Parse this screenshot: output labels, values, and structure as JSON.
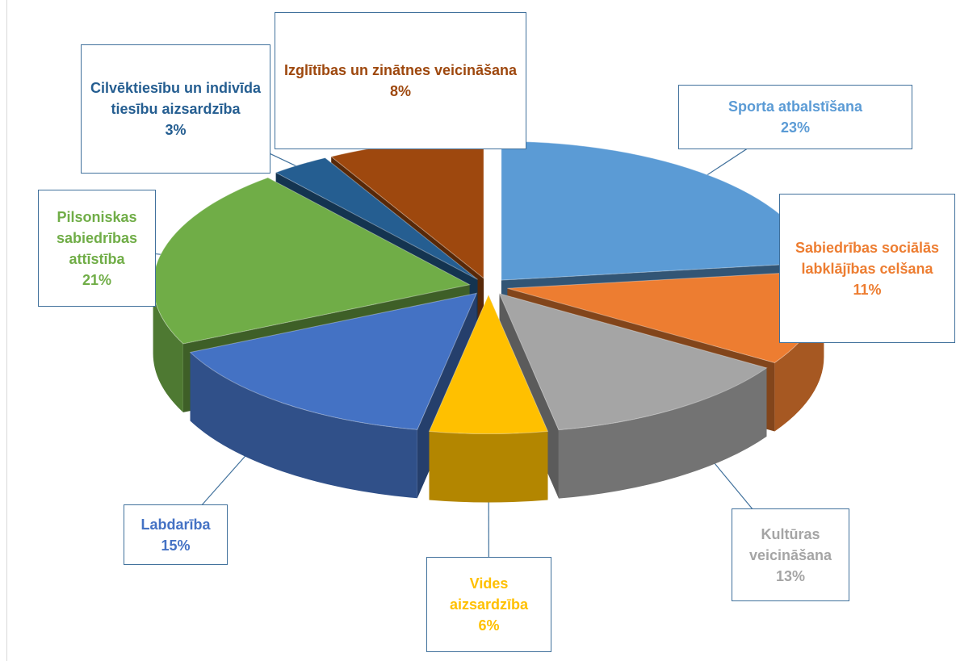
{
  "chart_data": {
    "type": "pie",
    "categories": [
      "Sporta atbalstīšana",
      "Sabiedrības sociālās labklājības celšana",
      "Kultūras veicināšana",
      "Vides aizsardzība",
      "Labdarība",
      "Pilsoniskas sabiedrības attīstība",
      "Cilvēktiesību un indivīda tiesību aizsardzība",
      "Izglītības un zinātnes veicināšana"
    ],
    "values": [
      23,
      11,
      13,
      6,
      15,
      21,
      3,
      8
    ],
    "value_labels": [
      "23%",
      "11%",
      "13%",
      "6%",
      "15%",
      "21%",
      "3%",
      "8%"
    ],
    "colors": [
      "#5b9bd5",
      "#ed7d31",
      "#a5a5a5",
      "#ffc000",
      "#4472c4",
      "#70ad47",
      "#255e91",
      "#9e480e"
    ]
  }
}
